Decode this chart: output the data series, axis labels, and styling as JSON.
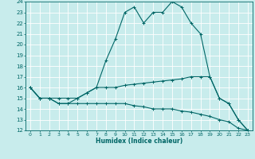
{
  "xlabel": "Humidex (Indice chaleur)",
  "ylabel": "",
  "bg_color": "#c8ecec",
  "grid_color": "#ffffff",
  "line_color": "#006666",
  "xlim": [
    -0.5,
    23.5
  ],
  "ylim": [
    12,
    24
  ],
  "xticks": [
    0,
    1,
    2,
    3,
    4,
    5,
    6,
    7,
    8,
    9,
    10,
    11,
    12,
    13,
    14,
    15,
    16,
    17,
    18,
    19,
    20,
    21,
    22,
    23
  ],
  "yticks": [
    12,
    13,
    14,
    15,
    16,
    17,
    18,
    19,
    20,
    21,
    22,
    23,
    24
  ],
  "line1_x": [
    0,
    1,
    2,
    3,
    4,
    5,
    6,
    7,
    8,
    9,
    10,
    11,
    12,
    13,
    14,
    15,
    16,
    17,
    18,
    19,
    20,
    21,
    22,
    23
  ],
  "line1_y": [
    16,
    15,
    15,
    14.5,
    14.5,
    15,
    15.5,
    16,
    18.5,
    20.5,
    23,
    23.5,
    22,
    23,
    23,
    24,
    23.5,
    22,
    21,
    17,
    15,
    14.5,
    13,
    12
  ],
  "line2_x": [
    0,
    1,
    2,
    3,
    4,
    5,
    6,
    7,
    8,
    9,
    10,
    11,
    12,
    13,
    14,
    15,
    16,
    17,
    18,
    19,
    20,
    21,
    22,
    23
  ],
  "line2_y": [
    16,
    15,
    15,
    15,
    15,
    15,
    15.5,
    16,
    16,
    16,
    16.2,
    16.3,
    16.4,
    16.5,
    16.6,
    16.7,
    16.8,
    17,
    17,
    17,
    15,
    14.5,
    13,
    12
  ],
  "line3_x": [
    0,
    1,
    2,
    3,
    4,
    5,
    6,
    7,
    8,
    9,
    10,
    11,
    12,
    13,
    14,
    15,
    16,
    17,
    18,
    19,
    20,
    21,
    22,
    23
  ],
  "line3_y": [
    16,
    15,
    15,
    14.5,
    14.5,
    14.5,
    14.5,
    14.5,
    14.5,
    14.5,
    14.5,
    14.3,
    14.2,
    14,
    14,
    14,
    13.8,
    13.7,
    13.5,
    13.3,
    13,
    12.8,
    12.2,
    12
  ]
}
